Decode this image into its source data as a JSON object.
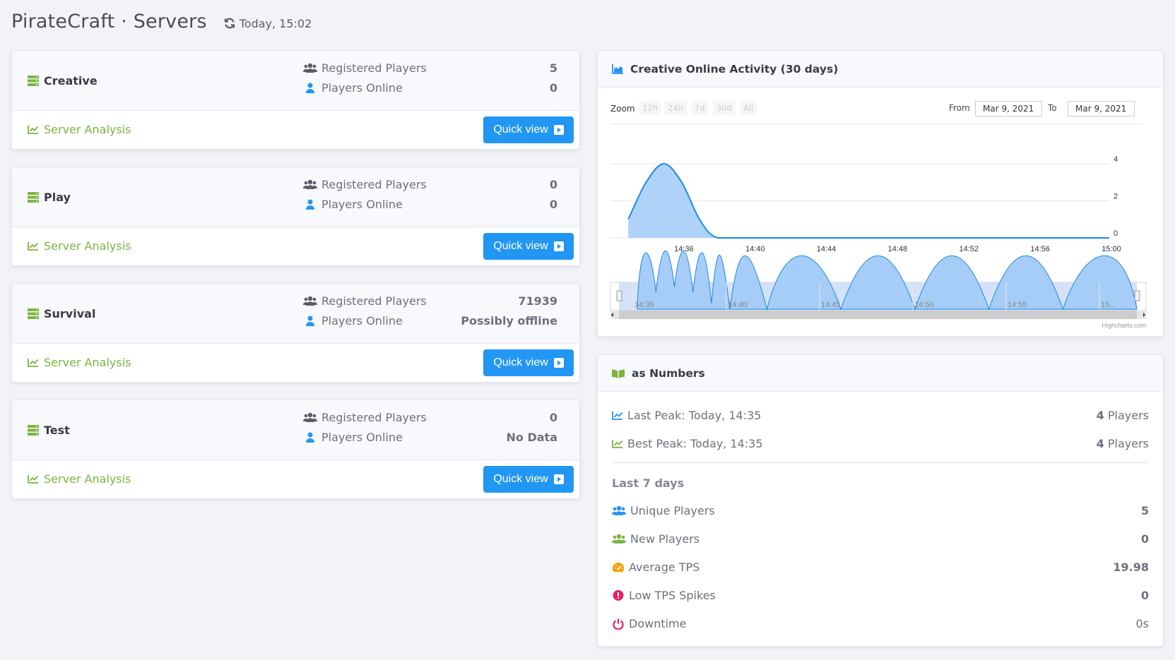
{
  "header": {
    "title": "PirateCraft · Servers",
    "refresh_time": "Today, 15:02"
  },
  "servers": [
    {
      "name": "Creative",
      "registered_label": "Registered Players",
      "registered_value": "5",
      "online_label": "Players Online",
      "online_value": "0",
      "analysis_label": "Server Analysis",
      "quick_view_label": "Quick view"
    },
    {
      "name": "Play",
      "registered_label": "Registered Players",
      "registered_value": "0",
      "online_label": "Players Online",
      "online_value": "0",
      "analysis_label": "Server Analysis",
      "quick_view_label": "Quick view"
    },
    {
      "name": "Survival",
      "registered_label": "Registered Players",
      "registered_value": "71939",
      "online_label": "Players Online",
      "online_value": "Possibly offline",
      "analysis_label": "Server Analysis",
      "quick_view_label": "Quick view"
    },
    {
      "name": "Test",
      "registered_label": "Registered Players",
      "registered_value": "0",
      "online_label": "Players Online",
      "online_value": "No Data",
      "analysis_label": "Server Analysis",
      "quick_view_label": "Quick view"
    }
  ],
  "activity": {
    "title": "Creative Online Activity (30 days)",
    "zoom_label": "Zoom",
    "zoom_buttons": [
      "12h",
      "24h",
      "7d",
      "30d",
      "All"
    ],
    "from_label": "From",
    "from_value": "Mar 9, 2021",
    "to_label": "To",
    "to_value": "Mar 9, 2021",
    "credits": "Highcharts.com",
    "navigator_ticks": [
      "14:35",
      "14:40",
      "14:45",
      "14:50",
      "14:55",
      "15..."
    ]
  },
  "chart_data": {
    "type": "area",
    "x": [
      "14:33",
      "14:34",
      "14:35",
      "14:36",
      "14:37",
      "14:38",
      "14:40",
      "14:44",
      "14:48",
      "14:52",
      "14:56",
      "15:00"
    ],
    "values": [
      1,
      3,
      4,
      3,
      1,
      0,
      0,
      0,
      0,
      0,
      0,
      0
    ],
    "x_tick_labels": [
      "14:36",
      "14:40",
      "14:44",
      "14:48",
      "14:52",
      "14:56",
      "15:00"
    ],
    "y_tick_labels": [
      "0",
      "2",
      "4"
    ],
    "ylim": [
      0,
      4
    ],
    "grid": true,
    "color": "#1e88e5"
  },
  "numbers": {
    "title": "as Numbers",
    "last_peak_label": "Last Peak: Today, 14:35",
    "last_peak_value": "4",
    "last_peak_unit": " Players",
    "best_peak_label": "Best Peak: Today, 14:35",
    "best_peak_value": "4",
    "best_peak_unit": " Players",
    "section": "Last 7 days",
    "rows": [
      {
        "label": "Unique Players",
        "value": "5",
        "bold": true,
        "icon": "users-icon",
        "color": "#2196f3"
      },
      {
        "label": "New Players",
        "value": "0",
        "bold": true,
        "icon": "user-plus-icon",
        "color": "#7cb342"
      },
      {
        "label": "Average TPS",
        "value": "19.98",
        "bold": true,
        "icon": "tachometer-icon",
        "color": "#ff9800"
      },
      {
        "label": "Low TPS Spikes",
        "value": "0",
        "bold": true,
        "icon": "exclamation-circle-icon",
        "color": "#e91e63"
      },
      {
        "label": "Downtime",
        "value": "0s",
        "bold": false,
        "icon": "power-off-icon",
        "color": "#e91e63"
      }
    ]
  },
  "colors": {
    "accent_blue": "#2196f3",
    "green": "#7cb342",
    "red": "#e91e63",
    "orange": "#ff9800"
  }
}
